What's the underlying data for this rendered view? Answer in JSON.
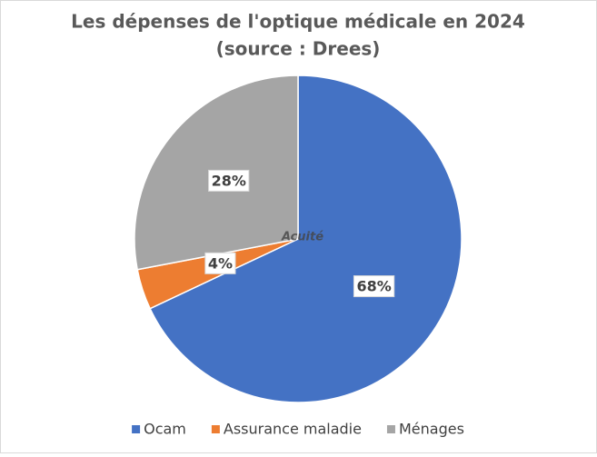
{
  "chart_data": {
    "type": "pie",
    "title": "Les dépenses de l'optique médicale en 2024",
    "subtitle": "(source : Drees)",
    "watermark": "Acuité",
    "categories": [
      "Ocam",
      "Assurance maladie",
      "Ménages"
    ],
    "values": [
      68,
      4,
      28
    ],
    "value_labels": [
      "68%",
      "4%",
      "28%"
    ],
    "colors": [
      "#4472c4",
      "#ed7d31",
      "#a5a5a5"
    ],
    "legend": "bottom"
  }
}
